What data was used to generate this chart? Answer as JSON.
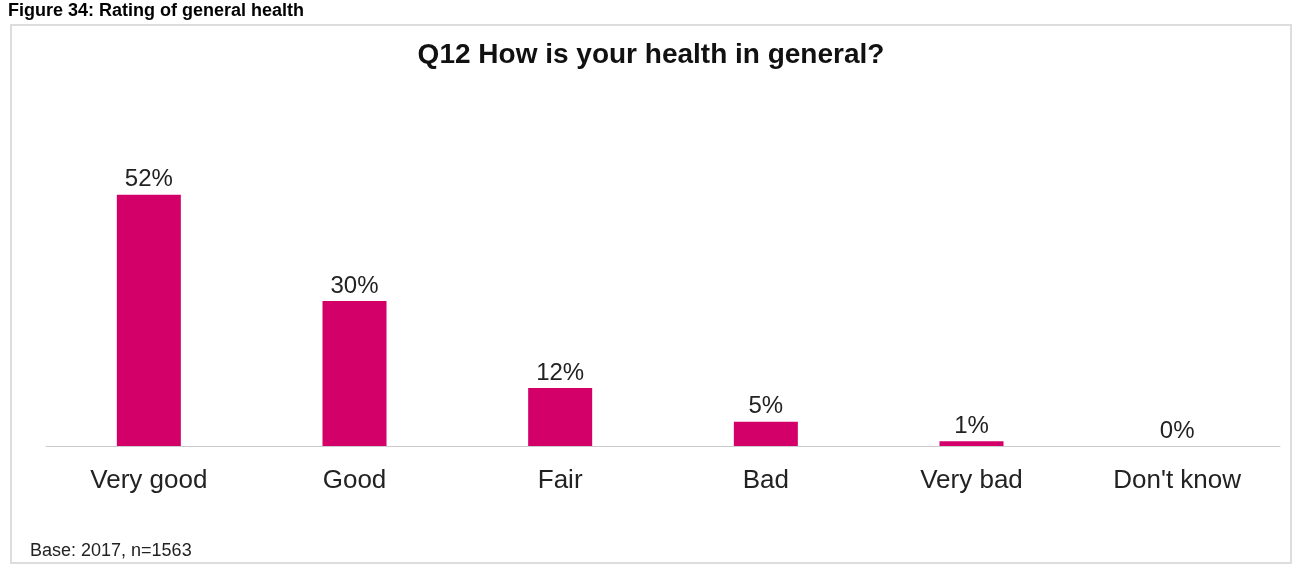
{
  "chart_data": {
    "type": "bar",
    "title": "Q12 How is your health in general?",
    "categories": [
      "Very good",
      "Good",
      "Fair",
      "Bad",
      "Very bad",
      "Don't know"
    ],
    "values": [
      52,
      30,
      12,
      5,
      1,
      0
    ],
    "value_labels": [
      "52%",
      "30%",
      "12%",
      "5%",
      "1%",
      "0%"
    ],
    "color": "#d20068",
    "annotations": [
      "Figure 34: Rating of general health",
      "Base: 2017, n=1563"
    ]
  }
}
